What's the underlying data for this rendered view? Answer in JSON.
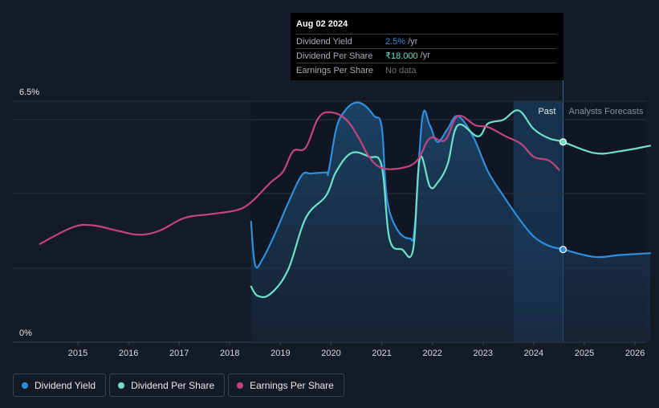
{
  "chart_data": {
    "type": "line",
    "title": "",
    "y_axis": {
      "top_label": "6.5%",
      "bottom_label": "0%",
      "range": [
        0,
        6.5
      ]
    },
    "x_ticks": [
      "2015",
      "2016",
      "2017",
      "2018",
      "2019",
      "2020",
      "2021",
      "2022",
      "2023",
      "2024",
      "2025",
      "2026"
    ],
    "x_range": [
      2014.25,
      2026.3
    ],
    "regions": {
      "past_label": "Past",
      "forecast_label": "Analysts Forecasts",
      "past_end": 2024.58,
      "highlight_start": 2023.6
    },
    "series": [
      {
        "name": "Dividend Yield",
        "color": "#2e8ee0",
        "points": [
          [
            2018.42,
            3.25
          ],
          [
            2018.5,
            2.08
          ],
          [
            2018.65,
            2.25
          ],
          [
            2018.9,
            2.95
          ],
          [
            2019.15,
            3.75
          ],
          [
            2019.42,
            4.5
          ],
          [
            2019.6,
            4.55
          ],
          [
            2019.9,
            4.58
          ],
          [
            2019.95,
            4.6
          ],
          [
            2020.1,
            5.75
          ],
          [
            2020.25,
            6.2
          ],
          [
            2020.45,
            6.45
          ],
          [
            2020.65,
            6.4
          ],
          [
            2020.85,
            6.1
          ],
          [
            2021.0,
            5.8
          ],
          [
            2021.1,
            3.9
          ],
          [
            2021.3,
            3.05
          ],
          [
            2021.55,
            2.8
          ],
          [
            2021.65,
            3.1
          ],
          [
            2021.8,
            6.05
          ],
          [
            2021.95,
            5.85
          ],
          [
            2022.1,
            5.4
          ],
          [
            2022.3,
            5.75
          ],
          [
            2022.5,
            6.1
          ],
          [
            2022.8,
            5.55
          ],
          [
            2023.1,
            4.6
          ],
          [
            2023.4,
            3.95
          ],
          [
            2023.7,
            3.35
          ],
          [
            2024.0,
            2.85
          ],
          [
            2024.3,
            2.6
          ],
          [
            2024.58,
            2.5
          ],
          [
            2025.2,
            2.3
          ],
          [
            2025.7,
            2.35
          ],
          [
            2026.3,
            2.4
          ]
        ]
      },
      {
        "name": "Dividend Per Share",
        "color": "#6ee0c9",
        "points": [
          [
            2018.42,
            1.5
          ],
          [
            2018.55,
            1.25
          ],
          [
            2018.8,
            1.3
          ],
          [
            2019.15,
            1.95
          ],
          [
            2019.5,
            3.35
          ],
          [
            2019.9,
            3.95
          ],
          [
            2020.1,
            4.6
          ],
          [
            2020.4,
            5.1
          ],
          [
            2020.75,
            5.0
          ],
          [
            2021.0,
            4.75
          ],
          [
            2021.15,
            2.8
          ],
          [
            2021.4,
            2.5
          ],
          [
            2021.62,
            2.5
          ],
          [
            2021.75,
            4.95
          ],
          [
            2021.95,
            4.2
          ],
          [
            2022.1,
            4.3
          ],
          [
            2022.3,
            4.8
          ],
          [
            2022.5,
            5.85
          ],
          [
            2022.9,
            5.55
          ],
          [
            2023.1,
            5.9
          ],
          [
            2023.4,
            6.0
          ],
          [
            2023.7,
            6.25
          ],
          [
            2024.0,
            5.75
          ],
          [
            2024.3,
            5.5
          ],
          [
            2024.58,
            5.4
          ],
          [
            2025.2,
            5.1
          ],
          [
            2025.7,
            5.15
          ],
          [
            2026.3,
            5.3
          ]
        ]
      },
      {
        "name": "Earnings Per Share",
        "color": "#c2457f",
        "points": [
          [
            2014.25,
            2.65
          ],
          [
            2014.9,
            3.1
          ],
          [
            2015.3,
            3.15
          ],
          [
            2015.8,
            3.0
          ],
          [
            2016.2,
            2.9
          ],
          [
            2016.6,
            3.0
          ],
          [
            2017.1,
            3.35
          ],
          [
            2017.6,
            3.45
          ],
          [
            2018.1,
            3.55
          ],
          [
            2018.4,
            3.75
          ],
          [
            2018.8,
            4.3
          ],
          [
            2019.05,
            4.6
          ],
          [
            2019.25,
            5.15
          ],
          [
            2019.5,
            5.25
          ],
          [
            2019.75,
            6.05
          ],
          [
            2020.0,
            6.2
          ],
          [
            2020.3,
            6.0
          ],
          [
            2020.55,
            5.5
          ],
          [
            2020.75,
            5.0
          ],
          [
            2021.0,
            4.7
          ],
          [
            2021.4,
            4.7
          ],
          [
            2021.7,
            4.9
          ],
          [
            2021.95,
            5.5
          ],
          [
            2022.25,
            5.45
          ],
          [
            2022.5,
            6.1
          ],
          [
            2022.85,
            5.85
          ],
          [
            2023.1,
            5.8
          ],
          [
            2023.45,
            5.55
          ],
          [
            2023.75,
            5.35
          ],
          [
            2024.0,
            5.0
          ],
          [
            2024.3,
            4.9
          ],
          [
            2024.5,
            4.65
          ]
        ]
      }
    ],
    "markers": [
      {
        "series": "Dividend Yield",
        "x": 2024.58,
        "y": 2.5
      },
      {
        "series": "Dividend Per Share",
        "x": 2024.58,
        "y": 5.4
      }
    ]
  },
  "tooltip": {
    "date": "Aug 02 2024",
    "rows": [
      {
        "key": "Dividend Yield",
        "value": "2.5%",
        "unit": "/yr",
        "color": "#2e8ee0"
      },
      {
        "key": "Dividend Per Share",
        "value": "₹18.000",
        "unit": "/yr",
        "color": "#6ee0c9"
      },
      {
        "key": "Earnings Per Share",
        "value": "No data"
      }
    ]
  },
  "legend": [
    {
      "label": "Dividend Yield",
      "color": "#2e8ee0"
    },
    {
      "label": "Dividend Per Share",
      "color": "#6ee0c9"
    },
    {
      "label": "Earnings Per Share",
      "color": "#c2457f"
    }
  ]
}
